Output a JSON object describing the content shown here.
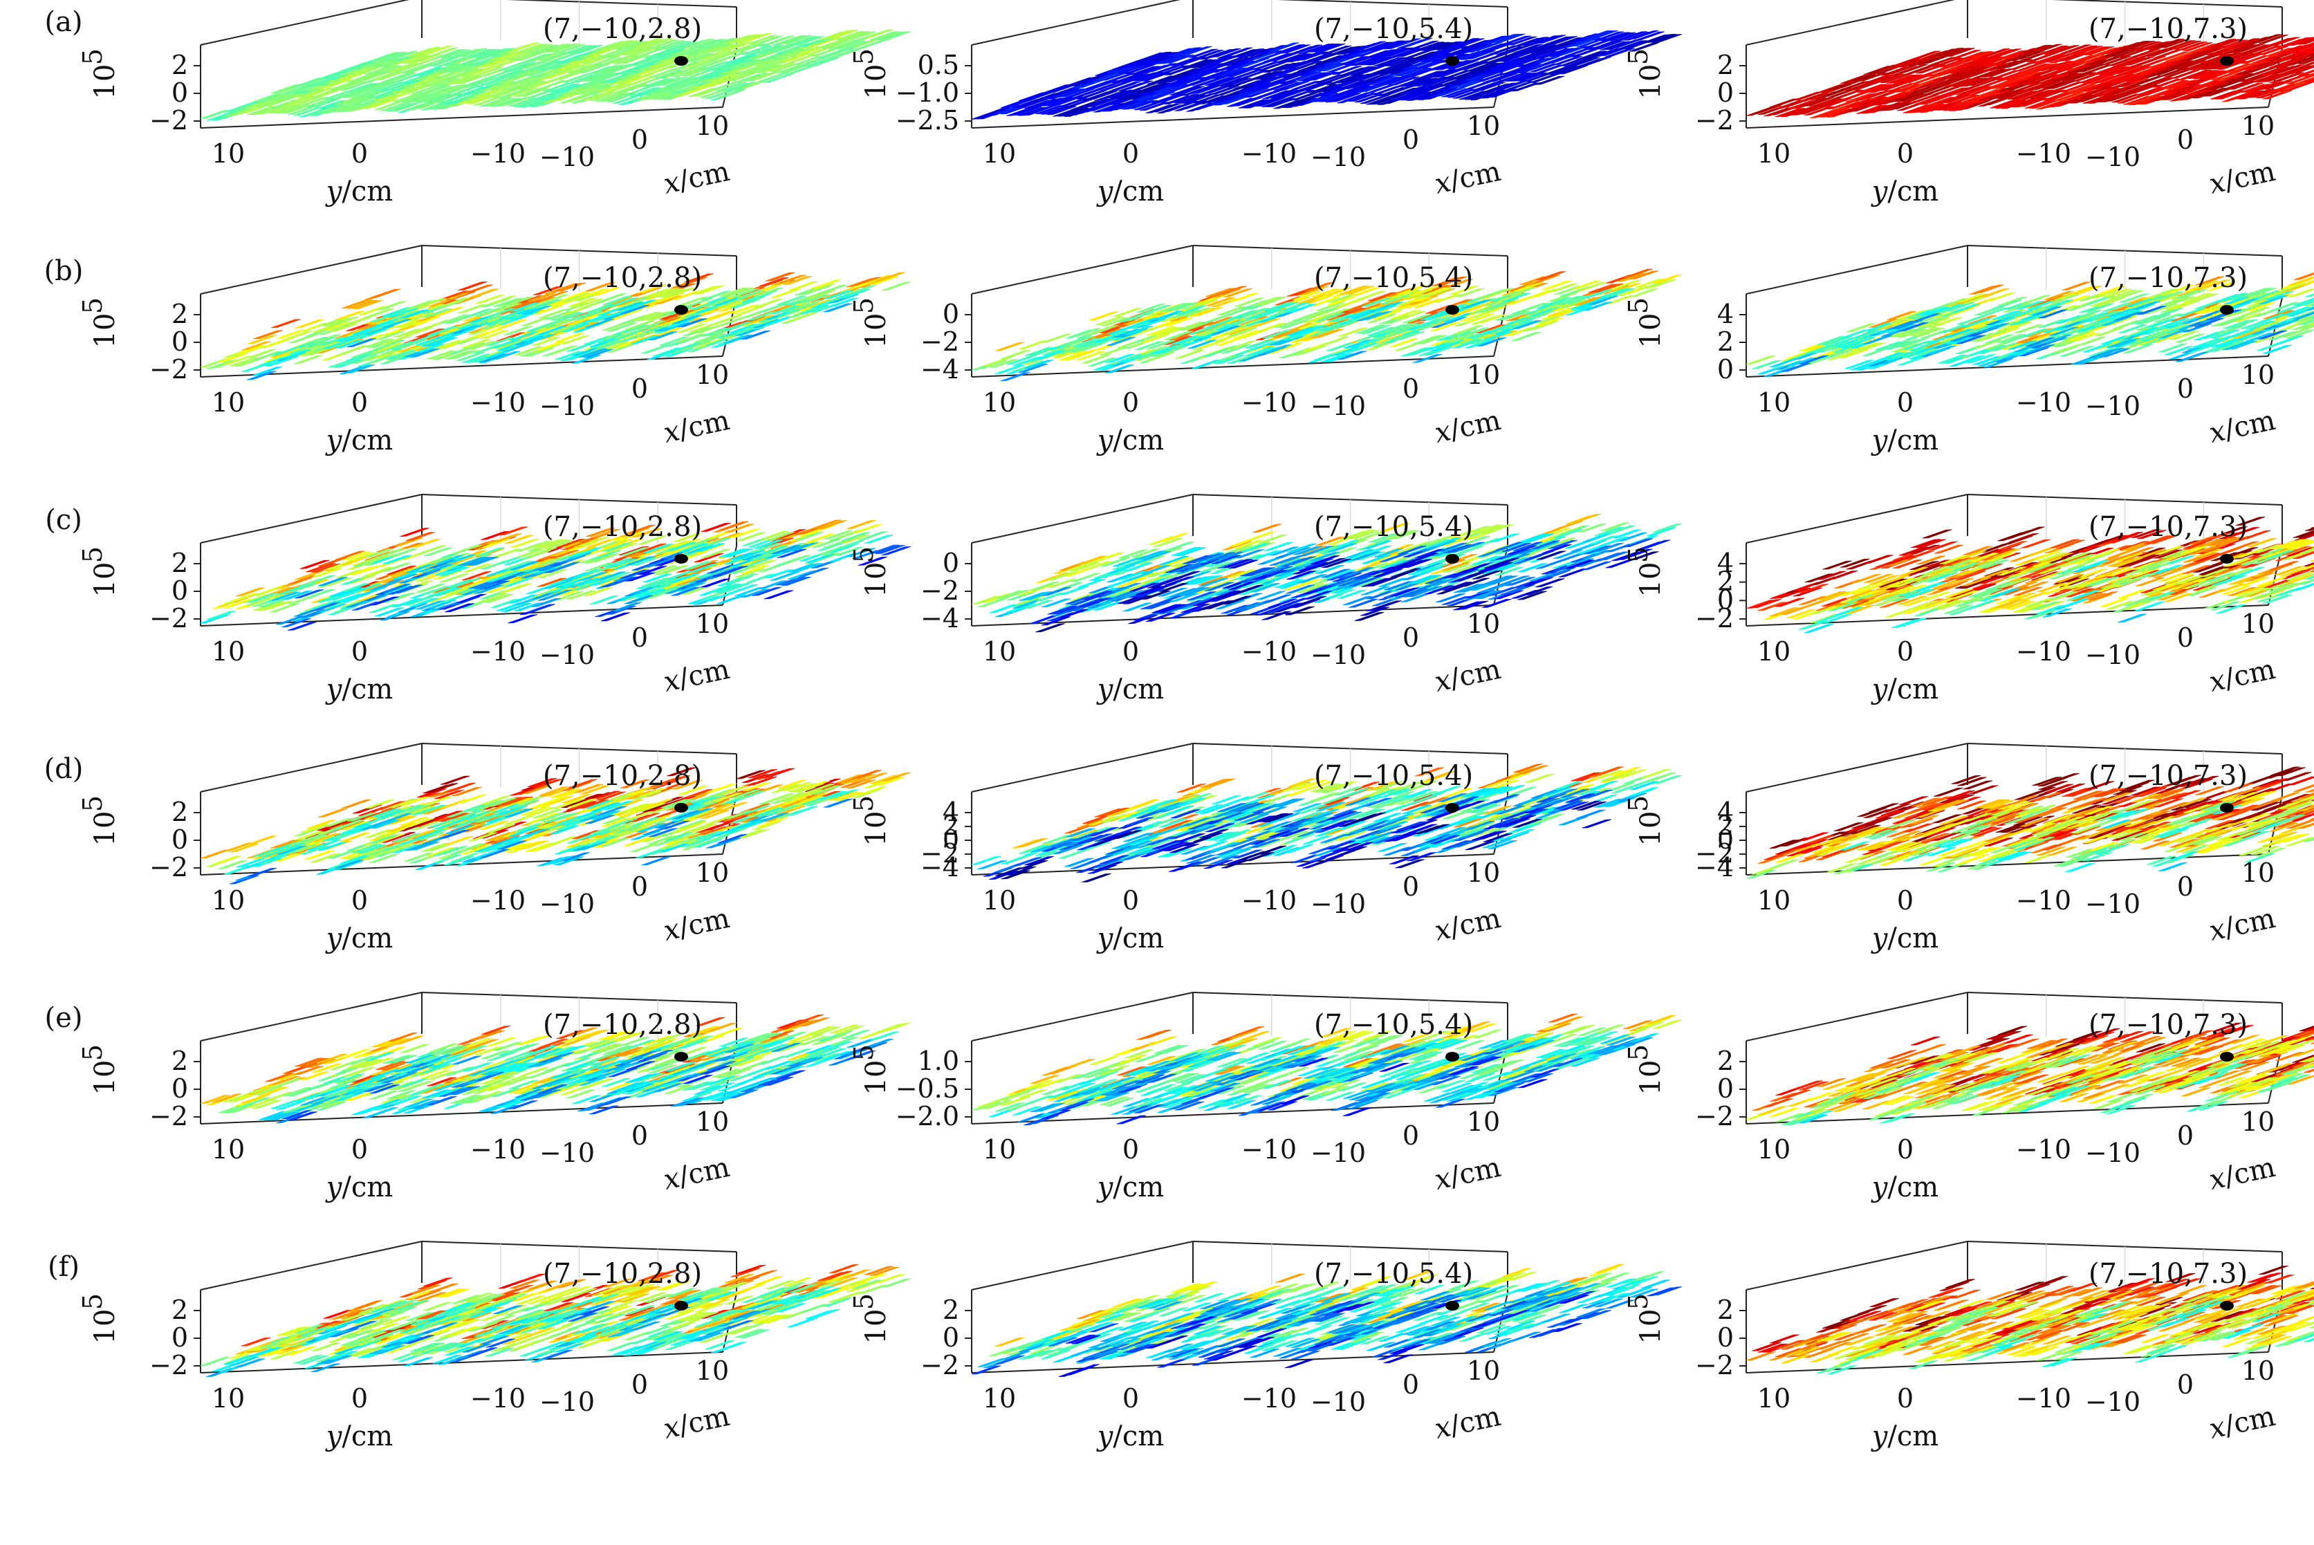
{
  "figure": {
    "xlabel_italic": "x",
    "xlabel_unit": "/cm",
    "ylabel_italic": "y",
    "ylabel_unit": "/cm",
    "zlabel": "10",
    "zlabel_exp": "5",
    "y_ticks": [
      "10",
      "0",
      "−10"
    ],
    "x_ticks": [
      "−10",
      "0",
      "10"
    ],
    "colormap": "jet",
    "marker_color": "#000000"
  },
  "chart_data": [
    {
      "type": "surface",
      "panel": "(a)",
      "col": 1,
      "annotation": "(7,−10,2.8)",
      "zlim": [
        -2,
        2
      ],
      "z_ticks": [
        "2",
        "0",
        "−2"
      ],
      "amplitude": 0.15,
      "level": 0.5,
      "seed": 11
    },
    {
      "type": "surface",
      "panel": "(a)",
      "col": 2,
      "annotation": "(7,−10,5.4)",
      "zlim": [
        -2.5,
        0.5
      ],
      "z_ticks": [
        "0.5",
        "−1.0",
        "−2.5"
      ],
      "amplitude": 0.15,
      "level": 0.1,
      "seed": 12
    },
    {
      "type": "surface",
      "panel": "(a)",
      "col": 3,
      "annotation": "(7,−10,7.3)",
      "zlim": [
        -2,
        2
      ],
      "z_ticks": [
        "2",
        "0",
        "−2"
      ],
      "amplitude": 0.15,
      "level": 0.9,
      "seed": 13
    },
    {
      "type": "surface",
      "panel": "(b)",
      "col": 1,
      "annotation": "(7,−10,2.8)",
      "zlim": [
        -2,
        2
      ],
      "z_ticks": [
        "2",
        "0",
        "−2"
      ],
      "amplitude": 0.6,
      "level": 0.55,
      "seed": 21
    },
    {
      "type": "surface",
      "panel": "(b)",
      "col": 2,
      "annotation": "(7,−10,5.4)",
      "zlim": [
        -4,
        0
      ],
      "z_ticks": [
        "0",
        "−2",
        "−4"
      ],
      "amplitude": 0.6,
      "level": 0.55,
      "seed": 22
    },
    {
      "type": "surface",
      "panel": "(b)",
      "col": 3,
      "annotation": "(7,−10,7.3)",
      "zlim": [
        0,
        4
      ],
      "z_ticks": [
        "4",
        "2",
        "0"
      ],
      "amplitude": 0.6,
      "level": 0.5,
      "seed": 23
    },
    {
      "type": "surface",
      "panel": "(c)",
      "col": 1,
      "annotation": "(7,−10,2.8)",
      "zlim": [
        -2,
        2
      ],
      "z_ticks": [
        "2",
        "0",
        "−2"
      ],
      "amplitude": 0.8,
      "level": 0.5,
      "seed": 31
    },
    {
      "type": "surface",
      "panel": "(c)",
      "col": 2,
      "annotation": "(7,−10,5.4)",
      "zlim": [
        -4,
        0
      ],
      "z_ticks": [
        "0",
        "−2",
        "−4"
      ],
      "amplitude": 0.8,
      "level": 0.35,
      "seed": 32
    },
    {
      "type": "surface",
      "panel": "(c)",
      "col": 3,
      "annotation": "(7,−10,7.3)",
      "zlim": [
        -2,
        4
      ],
      "z_ticks": [
        "4",
        "2",
        "0",
        "−2"
      ],
      "amplitude": 0.8,
      "level": 0.72,
      "seed": 33
    },
    {
      "type": "surface",
      "panel": "(d)",
      "col": 1,
      "annotation": "(7,−10,2.8)",
      "zlim": [
        -2,
        2
      ],
      "z_ticks": [
        "2",
        "0",
        "−2"
      ],
      "amplitude": 0.8,
      "level": 0.6,
      "seed": 41
    },
    {
      "type": "surface",
      "panel": "(d)",
      "col": 2,
      "annotation": "(7,−10,5.4)",
      "zlim": [
        -4,
        4
      ],
      "z_ticks": [
        "4",
        "2",
        "0",
        "−2",
        "−4"
      ],
      "amplitude": 0.9,
      "level": 0.4,
      "seed": 42
    },
    {
      "type": "surface",
      "panel": "(d)",
      "col": 3,
      "annotation": "(7,−10,7.3)",
      "zlim": [
        -4,
        4
      ],
      "z_ticks": [
        "4",
        "2",
        "0",
        "−2",
        "−4"
      ],
      "amplitude": 0.9,
      "level": 0.75,
      "seed": 43
    },
    {
      "type": "surface",
      "panel": "(e)",
      "col": 1,
      "annotation": "(7,−10,2.8)",
      "zlim": [
        -2,
        2
      ],
      "z_ticks": [
        "2",
        "0",
        "−2"
      ],
      "amplitude": 0.7,
      "level": 0.5,
      "seed": 51
    },
    {
      "type": "surface",
      "panel": "(e)",
      "col": 2,
      "annotation": "(7,−10,5.4)",
      "zlim": [
        -2,
        1
      ],
      "z_ticks": [
        "1.0",
        "−0.5",
        "−2.0"
      ],
      "amplitude": 0.7,
      "level": 0.45,
      "seed": 52
    },
    {
      "type": "surface",
      "panel": "(e)",
      "col": 3,
      "annotation": "(7,−10,7.3)",
      "zlim": [
        -2,
        2
      ],
      "z_ticks": [
        "2",
        "0",
        "−2"
      ],
      "amplitude": 0.7,
      "level": 0.7,
      "seed": 53
    },
    {
      "type": "surface",
      "panel": "(f)",
      "col": 1,
      "annotation": "(7,−10,2.8)",
      "zlim": [
        -2,
        2
      ],
      "z_ticks": [
        "2",
        "0",
        "−2"
      ],
      "amplitude": 0.7,
      "level": 0.55,
      "seed": 61
    },
    {
      "type": "surface",
      "panel": "(f)",
      "col": 2,
      "annotation": "(7,−10,5.4)",
      "zlim": [
        -2,
        2
      ],
      "z_ticks": [
        "2",
        "0",
        "−2"
      ],
      "amplitude": 0.7,
      "level": 0.4,
      "seed": 62
    },
    {
      "type": "surface",
      "panel": "(f)",
      "col": 3,
      "annotation": "(7,−10,7.3)",
      "zlim": [
        -2,
        2
      ],
      "z_ticks": [
        "2",
        "0",
        "−2"
      ],
      "amplitude": 0.7,
      "level": 0.7,
      "seed": 63
    }
  ]
}
